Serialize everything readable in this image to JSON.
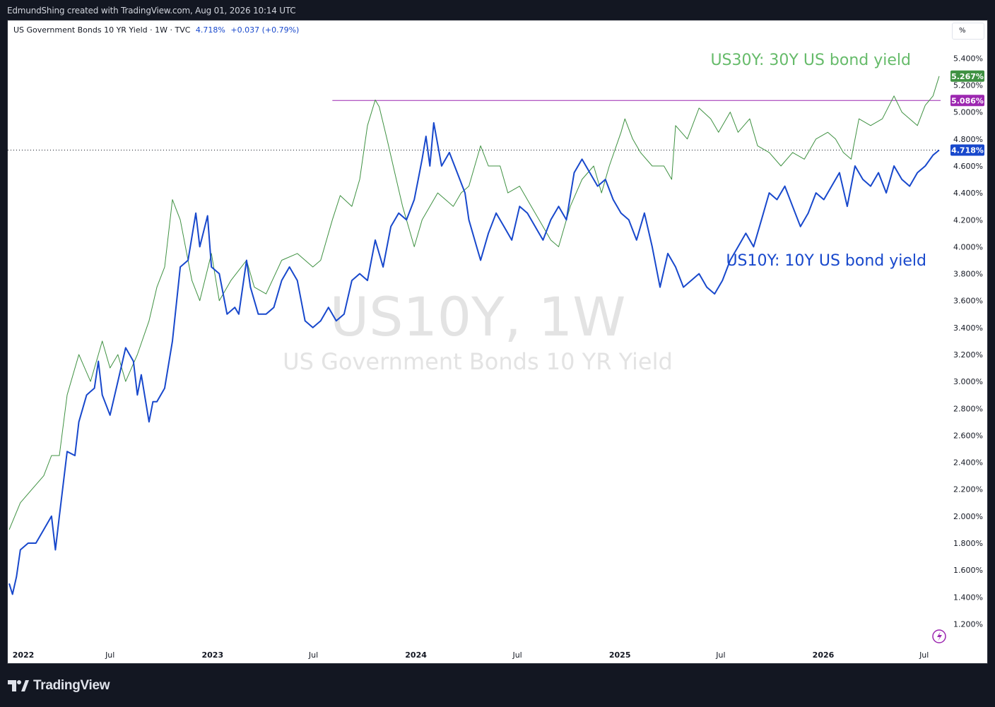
{
  "credit": "EdmundShing created with TradingView.com, Aug 01, 2026 10:14 UTC",
  "legend": {
    "title": "US Government Bonds 10 YR Yield · 1W · TVC",
    "last": "4.718%",
    "change": "+0.037 (+0.79%)"
  },
  "scale_button": "%",
  "brand": "TradingView",
  "colors": {
    "background": "#131722",
    "panel": "#ffffff",
    "us10y": "#1848cc",
    "us30y": "#3f9142",
    "us30y_label": "#66bb6a",
    "hline": "#9c27b0",
    "axis_text": "#131722",
    "watermark": "#e3e3e3"
  },
  "icons": {
    "replay": "lightning-icon",
    "logo": "tradingview-logo-icon"
  },
  "chart_data": {
    "type": "line",
    "watermark": {
      "symbol": "US10Y, 1W",
      "description": "US Government Bonds 10 YR Yield"
    },
    "x_ticks": [
      "2022",
      "Jul",
      "2023",
      "Jul",
      "2024",
      "Jul",
      "2025",
      "Jul",
      "2026",
      "Jul"
    ],
    "y_ticks": [
      "1.200%",
      "1.400%",
      "1.600%",
      "1.800%",
      "2.000%",
      "2.200%",
      "2.400%",
      "2.600%",
      "2.800%",
      "3.000%",
      "3.200%",
      "3.400%",
      "3.600%",
      "3.800%",
      "4.000%",
      "4.200%",
      "4.400%",
      "4.600%",
      "4.800%",
      "5.000%",
      "5.200%",
      "5.400%"
    ],
    "ylim": [
      1.05,
      5.68
    ],
    "x_range": [
      "2022-01-01",
      "2026-07-28"
    ],
    "series": [
      {
        "name": "US30Y: 30Y US bond yield",
        "last_label": "5.267%",
        "points": [
          [
            "2022-01-01",
            1.9
          ],
          [
            "2022-01-21",
            2.1
          ],
          [
            "2022-02-11",
            2.2
          ],
          [
            "2022-03-04",
            2.3
          ],
          [
            "2022-03-18",
            2.45
          ],
          [
            "2022-04-01",
            2.45
          ],
          [
            "2022-04-15",
            2.9
          ],
          [
            "2022-05-06",
            3.2
          ],
          [
            "2022-05-27",
            3.0
          ],
          [
            "2022-06-10",
            3.2
          ],
          [
            "2022-06-17",
            3.3
          ],
          [
            "2022-07-01",
            3.1
          ],
          [
            "2022-07-15",
            3.2
          ],
          [
            "2022-07-29",
            3.0
          ],
          [
            "2022-08-19",
            3.2
          ],
          [
            "2022-09-09",
            3.45
          ],
          [
            "2022-09-23",
            3.7
          ],
          [
            "2022-10-07",
            3.85
          ],
          [
            "2022-10-21",
            4.35
          ],
          [
            "2022-11-04",
            4.2
          ],
          [
            "2022-11-25",
            3.75
          ],
          [
            "2022-12-09",
            3.6
          ],
          [
            "2022-12-30",
            3.95
          ],
          [
            "2023-01-13",
            3.6
          ],
          [
            "2023-02-03",
            3.75
          ],
          [
            "2023-03-03",
            3.9
          ],
          [
            "2023-03-17",
            3.7
          ],
          [
            "2023-04-07",
            3.65
          ],
          [
            "2023-05-05",
            3.9
          ],
          [
            "2023-06-02",
            3.95
          ],
          [
            "2023-06-30",
            3.85
          ],
          [
            "2023-07-14",
            3.9
          ],
          [
            "2023-08-04",
            4.2
          ],
          [
            "2023-08-18",
            4.38
          ],
          [
            "2023-09-08",
            4.3
          ],
          [
            "2023-09-22",
            4.5
          ],
          [
            "2023-10-06",
            4.9
          ],
          [
            "2023-10-20",
            5.09
          ],
          [
            "2023-10-27",
            5.04
          ],
          [
            "2023-11-10",
            4.8
          ],
          [
            "2023-11-24",
            4.55
          ],
          [
            "2023-12-08",
            4.3
          ],
          [
            "2023-12-29",
            4.0
          ],
          [
            "2024-01-12",
            4.2
          ],
          [
            "2024-01-26",
            4.3
          ],
          [
            "2024-02-09",
            4.4
          ],
          [
            "2024-02-23",
            4.35
          ],
          [
            "2024-03-08",
            4.3
          ],
          [
            "2024-03-22",
            4.4
          ],
          [
            "2024-04-05",
            4.45
          ],
          [
            "2024-04-26",
            4.75
          ],
          [
            "2024-05-10",
            4.6
          ],
          [
            "2024-05-31",
            4.6
          ],
          [
            "2024-06-14",
            4.4
          ],
          [
            "2024-07-05",
            4.45
          ],
          [
            "2024-07-26",
            4.3
          ],
          [
            "2024-08-09",
            4.2
          ],
          [
            "2024-08-30",
            4.05
          ],
          [
            "2024-09-13",
            4.0
          ],
          [
            "2024-10-04",
            4.3
          ],
          [
            "2024-10-25",
            4.5
          ],
          [
            "2024-11-15",
            4.6
          ],
          [
            "2024-11-29",
            4.4
          ],
          [
            "2024-12-13",
            4.6
          ],
          [
            "2025-01-03",
            4.85
          ],
          [
            "2025-01-10",
            4.95
          ],
          [
            "2025-01-24",
            4.8
          ],
          [
            "2025-02-07",
            4.7
          ],
          [
            "2025-02-28",
            4.6
          ],
          [
            "2025-03-21",
            4.6
          ],
          [
            "2025-04-04",
            4.5
          ],
          [
            "2025-04-11",
            4.9
          ],
          [
            "2025-05-02",
            4.8
          ],
          [
            "2025-05-23",
            5.03
          ],
          [
            "2025-06-13",
            4.95
          ],
          [
            "2025-06-27",
            4.85
          ],
          [
            "2025-07-18",
            5.0
          ],
          [
            "2025-08-01",
            4.85
          ],
          [
            "2025-08-22",
            4.95
          ],
          [
            "2025-09-05",
            4.75
          ],
          [
            "2025-09-26",
            4.7
          ],
          [
            "2025-10-17",
            4.6
          ],
          [
            "2025-11-07",
            4.7
          ],
          [
            "2025-11-28",
            4.65
          ],
          [
            "2025-12-19",
            4.8
          ],
          [
            "2026-01-09",
            4.85
          ],
          [
            "2026-01-23",
            4.8
          ],
          [
            "2026-02-06",
            4.7
          ],
          [
            "2026-02-20",
            4.65
          ],
          [
            "2026-03-06",
            4.95
          ],
          [
            "2026-03-27",
            4.9
          ],
          [
            "2026-04-17",
            4.95
          ],
          [
            "2026-05-08",
            5.12
          ],
          [
            "2026-05-22",
            5.0
          ],
          [
            "2026-06-05",
            4.95
          ],
          [
            "2026-06-19",
            4.9
          ],
          [
            "2026-07-03",
            5.05
          ],
          [
            "2026-07-17",
            5.12
          ],
          [
            "2026-07-28",
            5.267
          ]
        ]
      },
      {
        "name": "US10Y: 10Y US bond yield",
        "last_label": "4.718%",
        "points": [
          [
            "2022-01-01",
            1.5
          ],
          [
            "2022-01-07",
            1.42
          ],
          [
            "2022-01-14",
            1.55
          ],
          [
            "2022-01-21",
            1.75
          ],
          [
            "2022-02-04",
            1.8
          ],
          [
            "2022-02-18",
            1.8
          ],
          [
            "2022-03-04",
            1.9
          ],
          [
            "2022-03-18",
            2.0
          ],
          [
            "2022-03-25",
            1.75
          ],
          [
            "2022-04-01",
            2.0
          ],
          [
            "2022-04-15",
            2.48
          ],
          [
            "2022-04-29",
            2.45
          ],
          [
            "2022-05-06",
            2.7
          ],
          [
            "2022-05-20",
            2.9
          ],
          [
            "2022-06-03",
            2.95
          ],
          [
            "2022-06-10",
            3.15
          ],
          [
            "2022-06-17",
            2.9
          ],
          [
            "2022-07-01",
            2.75
          ],
          [
            "2022-07-15",
            3.0
          ],
          [
            "2022-07-29",
            3.25
          ],
          [
            "2022-08-12",
            3.15
          ],
          [
            "2022-08-19",
            2.9
          ],
          [
            "2022-08-26",
            3.05
          ],
          [
            "2022-09-09",
            2.7
          ],
          [
            "2022-09-16",
            2.85
          ],
          [
            "2022-09-23",
            2.85
          ],
          [
            "2022-10-07",
            2.95
          ],
          [
            "2022-10-21",
            3.3
          ],
          [
            "2022-11-04",
            3.85
          ],
          [
            "2022-11-18",
            3.9
          ],
          [
            "2022-12-02",
            4.25
          ],
          [
            "2022-12-09",
            4.0
          ],
          [
            "2022-12-23",
            4.23
          ],
          [
            "2022-12-30",
            3.85
          ],
          [
            "2023-01-13",
            3.8
          ],
          [
            "2023-01-27",
            3.5
          ],
          [
            "2023-02-10",
            3.55
          ],
          [
            "2023-02-17",
            3.5
          ],
          [
            "2023-03-03",
            3.9
          ],
          [
            "2023-03-10",
            3.7
          ],
          [
            "2023-03-24",
            3.5
          ],
          [
            "2023-04-07",
            3.5
          ],
          [
            "2023-04-21",
            3.55
          ],
          [
            "2023-05-05",
            3.75
          ],
          [
            "2023-05-19",
            3.85
          ],
          [
            "2023-06-02",
            3.75
          ],
          [
            "2023-06-16",
            3.45
          ],
          [
            "2023-06-30",
            3.4
          ],
          [
            "2023-07-14",
            3.45
          ],
          [
            "2023-07-28",
            3.55
          ],
          [
            "2023-08-11",
            3.45
          ],
          [
            "2023-08-25",
            3.5
          ],
          [
            "2023-09-08",
            3.75
          ],
          [
            "2023-09-22",
            3.8
          ],
          [
            "2023-10-06",
            3.75
          ],
          [
            "2023-10-20",
            4.05
          ],
          [
            "2023-11-03",
            3.85
          ],
          [
            "2023-11-17",
            4.15
          ],
          [
            "2023-12-01",
            4.25
          ],
          [
            "2023-12-15",
            4.2
          ],
          [
            "2023-12-29",
            4.35
          ],
          [
            "2024-01-05",
            4.5
          ],
          [
            "2024-01-12",
            4.65
          ],
          [
            "2024-01-19",
            4.82
          ],
          [
            "2024-01-26",
            4.6
          ],
          [
            "2024-02-02",
            4.92
          ],
          [
            "2024-02-16",
            4.6
          ],
          [
            "2024-03-01",
            4.7
          ],
          [
            "2024-03-15",
            4.55
          ],
          [
            "2024-03-29",
            4.4
          ],
          [
            "2024-04-05",
            4.2
          ],
          [
            "2024-04-19",
            4.0
          ],
          [
            "2024-04-26",
            3.9
          ],
          [
            "2024-05-10",
            4.1
          ],
          [
            "2024-05-24",
            4.25
          ],
          [
            "2024-06-07",
            4.15
          ],
          [
            "2024-06-21",
            4.05
          ],
          [
            "2024-07-05",
            4.3
          ],
          [
            "2024-07-19",
            4.25
          ],
          [
            "2024-08-02",
            4.15
          ],
          [
            "2024-08-16",
            4.05
          ],
          [
            "2024-08-30",
            4.2
          ],
          [
            "2024-09-13",
            4.3
          ],
          [
            "2024-09-27",
            4.2
          ],
          [
            "2024-10-11",
            4.55
          ],
          [
            "2024-10-25",
            4.65
          ],
          [
            "2024-11-08",
            4.55
          ],
          [
            "2024-11-22",
            4.45
          ],
          [
            "2024-12-06",
            4.5
          ],
          [
            "2024-12-20",
            4.35
          ],
          [
            "2025-01-03",
            4.25
          ],
          [
            "2025-01-17",
            4.2
          ],
          [
            "2025-01-31",
            4.05
          ],
          [
            "2025-02-14",
            4.25
          ],
          [
            "2025-02-28",
            4.0
          ],
          [
            "2025-03-14",
            3.7
          ],
          [
            "2025-03-28",
            3.95
          ],
          [
            "2025-04-11",
            3.85
          ],
          [
            "2025-04-25",
            3.7
          ],
          [
            "2025-05-09",
            3.75
          ],
          [
            "2025-05-23",
            3.8
          ],
          [
            "2025-06-06",
            3.7
          ],
          [
            "2025-06-20",
            3.65
          ],
          [
            "2025-07-04",
            3.75
          ],
          [
            "2025-07-18",
            3.9
          ],
          [
            "2025-08-01",
            4.0
          ],
          [
            "2025-08-15",
            4.1
          ],
          [
            "2025-08-29",
            4.0
          ],
          [
            "2025-09-12",
            4.2
          ],
          [
            "2025-09-26",
            4.4
          ],
          [
            "2025-10-10",
            4.35
          ],
          [
            "2025-10-24",
            4.45
          ],
          [
            "2025-11-07",
            4.3
          ],
          [
            "2025-11-21",
            4.15
          ],
          [
            "2025-12-05",
            4.25
          ],
          [
            "2025-12-19",
            4.4
          ],
          [
            "2026-01-02",
            4.35
          ],
          [
            "2026-01-16",
            4.45
          ],
          [
            "2026-01-30",
            4.55
          ],
          [
            "2026-02-13",
            4.3
          ],
          [
            "2026-02-27",
            4.6
          ],
          [
            "2026-03-13",
            4.5
          ],
          [
            "2026-03-27",
            4.45
          ],
          [
            "2026-04-10",
            4.55
          ],
          [
            "2026-04-24",
            4.4
          ],
          [
            "2026-05-08",
            4.6
          ],
          [
            "2026-05-22",
            4.5
          ],
          [
            "2026-06-05",
            4.45
          ],
          [
            "2026-06-19",
            4.55
          ],
          [
            "2026-07-03",
            4.6
          ],
          [
            "2026-07-17",
            4.68
          ],
          [
            "2026-07-28",
            4.718
          ]
        ]
      }
    ],
    "annotations": [
      {
        "text": "US30Y: 30Y US bond yield",
        "series": 0
      },
      {
        "text": "US10Y: 10Y US bond yield",
        "series": 1
      }
    ],
    "horizontal_line": {
      "value": 5.086,
      "label": "5.086%",
      "from": "2023-08-04"
    },
    "current_price_line": {
      "value": 4.718
    },
    "grid": false,
    "legend_position": "top-left"
  }
}
